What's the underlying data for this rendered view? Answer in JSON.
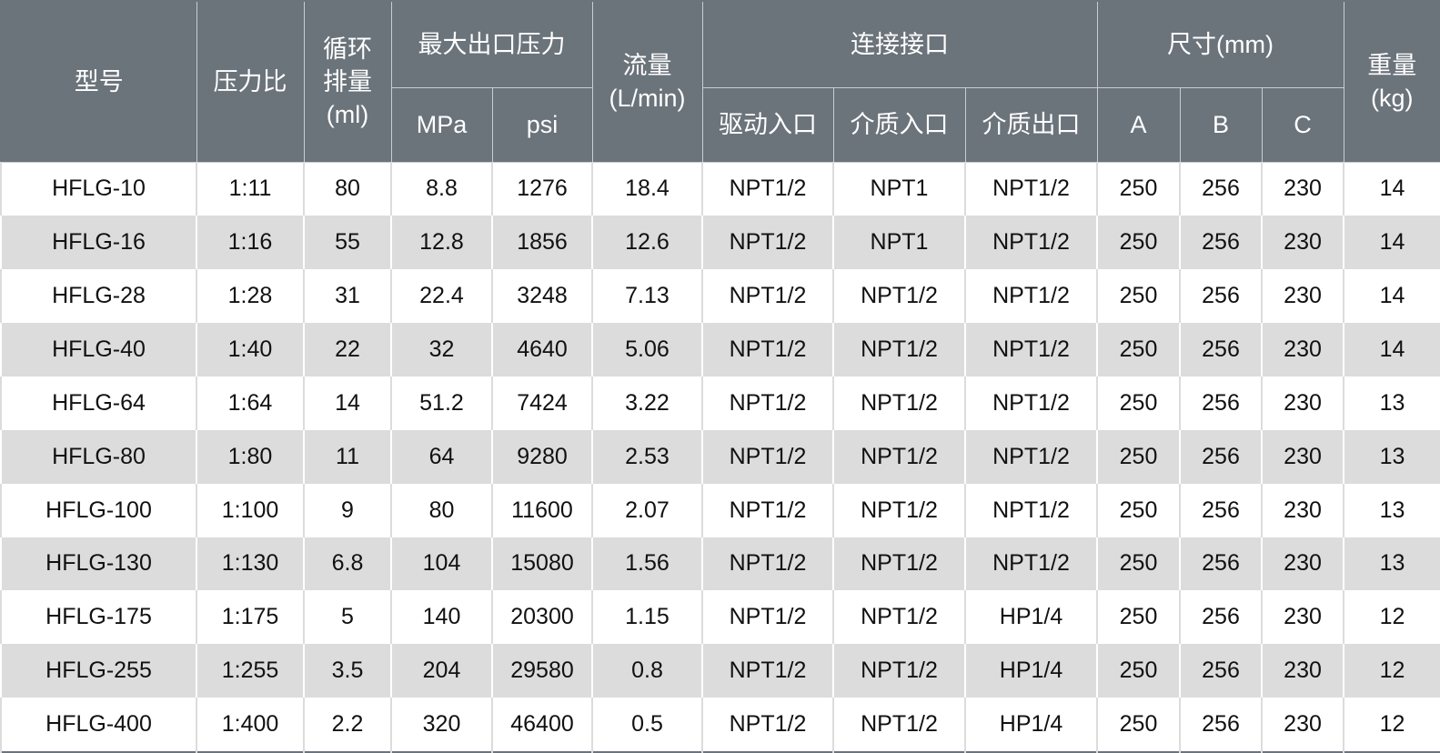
{
  "header": {
    "model": "型号",
    "ratio": "压力比",
    "displacement": "循环\n排量\n(ml)",
    "max_pressure": "最大出口压力",
    "mpa": "MPa",
    "psi": "psi",
    "flow": "流量\n(L/min)",
    "connection": "连接接口",
    "drive_inlet": "驱动入口",
    "media_inlet": "介质入口",
    "media_outlet": "介质出口",
    "dimensions": "尺寸(mm)",
    "a": "A",
    "b": "B",
    "c": "C",
    "weight": "重量\n(kg)"
  },
  "colors": {
    "header_bg": "#6b737b",
    "alt_row": "#dcdcdc"
  },
  "rows": [
    [
      "HFLG-10",
      "1:11",
      "80",
      "8.8",
      "1276",
      "18.4",
      "NPT1/2",
      "NPT1",
      "NPT1/2",
      "250",
      "256",
      "230",
      "14"
    ],
    [
      "HFLG-16",
      "1:16",
      "55",
      "12.8",
      "1856",
      "12.6",
      "NPT1/2",
      "NPT1",
      "NPT1/2",
      "250",
      "256",
      "230",
      "14"
    ],
    [
      "HFLG-28",
      "1:28",
      "31",
      "22.4",
      "3248",
      "7.13",
      "NPT1/2",
      "NPT1/2",
      "NPT1/2",
      "250",
      "256",
      "230",
      "14"
    ],
    [
      "HFLG-40",
      "1:40",
      "22",
      "32",
      "4640",
      "5.06",
      "NPT1/2",
      "NPT1/2",
      "NPT1/2",
      "250",
      "256",
      "230",
      "14"
    ],
    [
      "HFLG-64",
      "1:64",
      "14",
      "51.2",
      "7424",
      "3.22",
      "NPT1/2",
      "NPT1/2",
      "NPT1/2",
      "250",
      "256",
      "230",
      "13"
    ],
    [
      "HFLG-80",
      "1:80",
      "11",
      "64",
      "9280",
      "2.53",
      "NPT1/2",
      "NPT1/2",
      "NPT1/2",
      "250",
      "256",
      "230",
      "13"
    ],
    [
      "HFLG-100",
      "1:100",
      "9",
      "80",
      "11600",
      "2.07",
      "NPT1/2",
      "NPT1/2",
      "NPT1/2",
      "250",
      "256",
      "230",
      "13"
    ],
    [
      "HFLG-130",
      "1:130",
      "6.8",
      "104",
      "15080",
      "1.56",
      "NPT1/2",
      "NPT1/2",
      "NPT1/2",
      "250",
      "256",
      "230",
      "13"
    ],
    [
      "HFLG-175",
      "1:175",
      "5",
      "140",
      "20300",
      "1.15",
      "NPT1/2",
      "NPT1/2",
      "HP1/4",
      "250",
      "256",
      "230",
      "12"
    ],
    [
      "HFLG-255",
      "1:255",
      "3.5",
      "204",
      "29580",
      "0.8",
      "NPT1/2",
      "NPT1/2",
      "HP1/4",
      "250",
      "256",
      "230",
      "12"
    ],
    [
      "HFLG-400",
      "1:400",
      "2.2",
      "320",
      "46400",
      "0.5",
      "NPT1/2",
      "NPT1/2",
      "HP1/4",
      "250",
      "256",
      "230",
      "12"
    ]
  ]
}
